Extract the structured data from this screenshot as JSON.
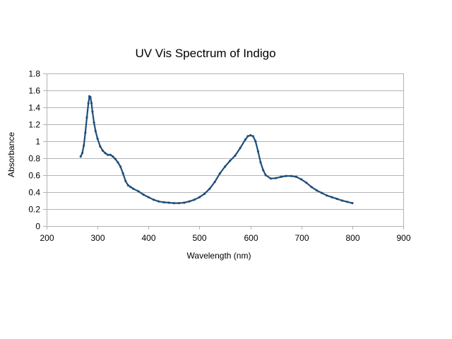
{
  "chart_data": {
    "type": "scatter",
    "title": "UV Vis Spectrum of Indigo",
    "xlabel": "Wavelength (nm)",
    "ylabel": "Absorbance",
    "xlim": [
      200,
      900
    ],
    "ylim": [
      0,
      1.8
    ],
    "x_ticks": [
      "200",
      "300",
      "400",
      "500",
      "600",
      "700",
      "800",
      "900"
    ],
    "y_ticks": [
      "0",
      "0.2",
      "0.4",
      "0.6",
      "0.8",
      "1",
      "1.2",
      "1.4",
      "1.6",
      "1.8"
    ],
    "grid": true,
    "legend": "none",
    "series_color": "#1f4e79",
    "series": [
      {
        "x": [
          267,
          270,
          273,
          276,
          279,
          282,
          284,
          286,
          288,
          290,
          293,
          296,
          300,
          305,
          310,
          315,
          320,
          325,
          330,
          335,
          340,
          345,
          350,
          355,
          360,
          365,
          370,
          380,
          390,
          400,
          410,
          420,
          430,
          440,
          450,
          460,
          470,
          480,
          490,
          500,
          510,
          520,
          530,
          540,
          550,
          560,
          570,
          580,
          590,
          595,
          600,
          605,
          610,
          615,
          620,
          625,
          630,
          640,
          650,
          660,
          670,
          680,
          690,
          700,
          710,
          720,
          730,
          740,
          750,
          760,
          770,
          780,
          790,
          800
        ],
        "y": [
          0.82,
          0.86,
          0.95,
          1.1,
          1.28,
          1.45,
          1.53,
          1.52,
          1.45,
          1.35,
          1.22,
          1.12,
          1.03,
          0.94,
          0.89,
          0.86,
          0.84,
          0.84,
          0.82,
          0.79,
          0.75,
          0.7,
          0.62,
          0.53,
          0.48,
          0.46,
          0.44,
          0.41,
          0.37,
          0.34,
          0.31,
          0.29,
          0.28,
          0.275,
          0.27,
          0.27,
          0.275,
          0.29,
          0.31,
          0.34,
          0.38,
          0.44,
          0.52,
          0.62,
          0.7,
          0.77,
          0.83,
          0.92,
          1.02,
          1.06,
          1.07,
          1.06,
          1.0,
          0.88,
          0.75,
          0.66,
          0.6,
          0.56,
          0.565,
          0.58,
          0.59,
          0.59,
          0.58,
          0.55,
          0.51,
          0.46,
          0.42,
          0.39,
          0.36,
          0.34,
          0.32,
          0.3,
          0.285,
          0.27
        ]
      }
    ]
  }
}
